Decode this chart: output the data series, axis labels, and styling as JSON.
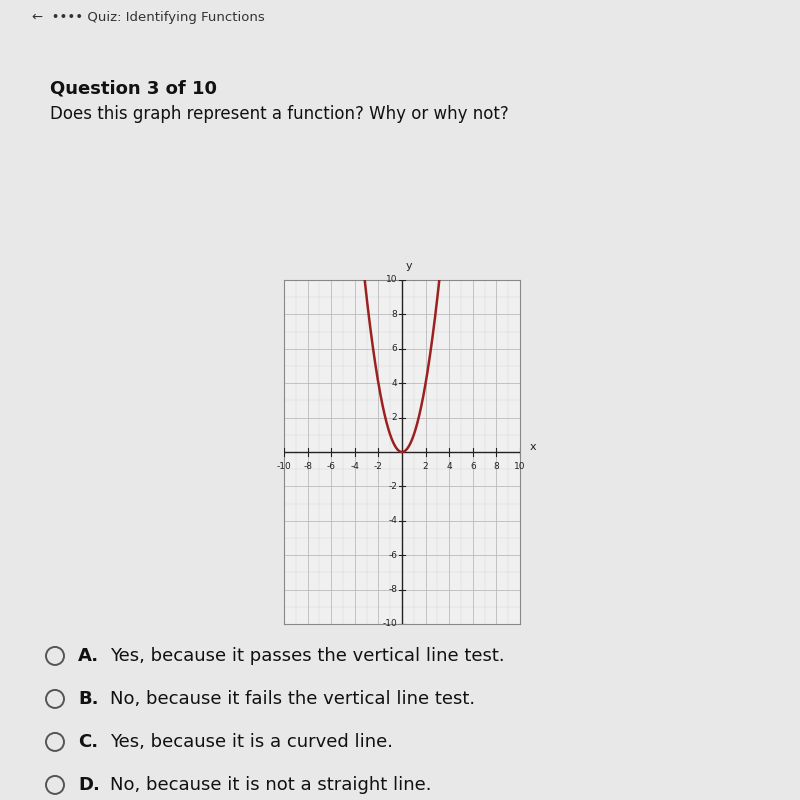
{
  "bg_color": "#e8e8e8",
  "header_bg": "#cccccc",
  "header_text": "←  •••• Quiz: Identifying Functions",
  "question_label": "Question 3 of 10",
  "question_body": "Does this graph represent a function? Why or why not?",
  "curve_color": "#9b2020",
  "curve_linewidth": 1.8,
  "graph_bg": "#f0f0f0",
  "grid_color": "#bbbbbb",
  "grid_minor_color": "#d5d5d5",
  "axis_color": "#222222",
  "tick_label_color": "#222222",
  "options": [
    {
      "label": "A.",
      "text": "Yes, because it passes the vertical line test."
    },
    {
      "label": "B.",
      "text": "No, because it fails the vertical line test."
    },
    {
      "label": "C.",
      "text": "Yes, because it is a curved line."
    },
    {
      "label": "D.",
      "text": "No, because it is not a straight line."
    }
  ]
}
